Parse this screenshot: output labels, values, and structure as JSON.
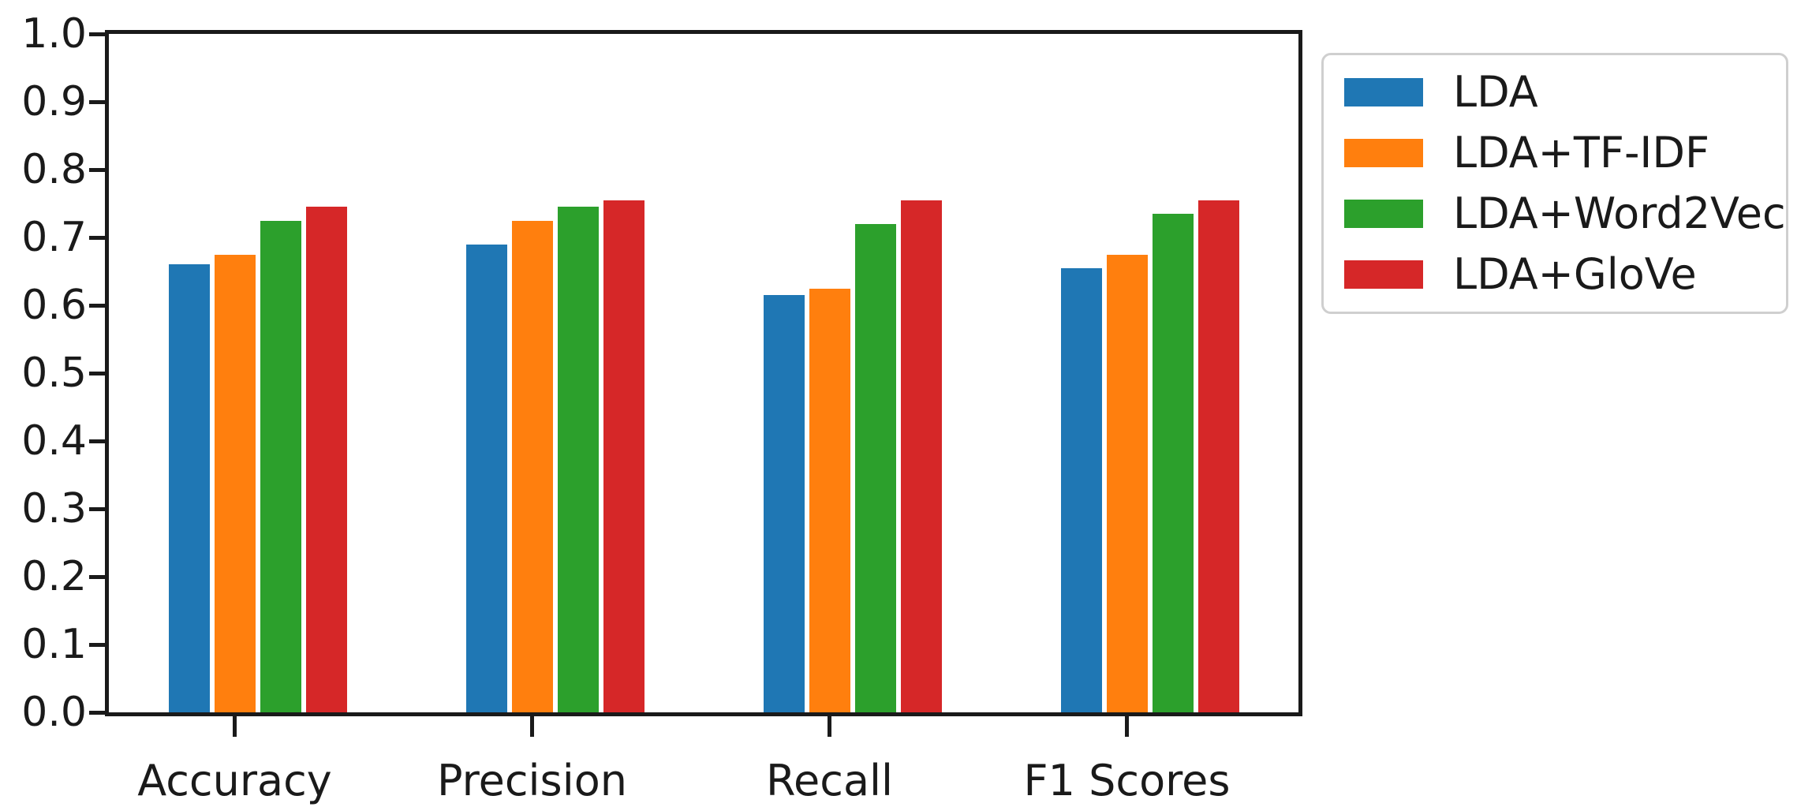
{
  "figure": {
    "background": "#ffffff",
    "axis_color": "#1a1a1a",
    "text_color": "#1a1a1a",
    "legend_border_color": "#cfcfcf"
  },
  "chart_data": {
    "type": "bar",
    "title": "",
    "xlabel": "",
    "ylabel": "",
    "categories": [
      "Accuracy",
      "Precision",
      "Recall",
      "F1 Scores"
    ],
    "series": [
      {
        "name": "LDA",
        "color": "#1f77b4",
        "values": [
          0.66,
          0.69,
          0.615,
          0.655
        ]
      },
      {
        "name": "LDA+TF-IDF",
        "color": "#ff7f0e",
        "values": [
          0.675,
          0.725,
          0.625,
          0.675
        ]
      },
      {
        "name": "LDA+Word2Vec",
        "color": "#2ca02c",
        "values": [
          0.725,
          0.745,
          0.72,
          0.735
        ]
      },
      {
        "name": "LDA+GloVe",
        "color": "#d62728",
        "values": [
          0.745,
          0.755,
          0.755,
          0.755
        ]
      }
    ],
    "ylim": [
      0.0,
      1.0
    ],
    "yticks": [
      "0.0",
      "0.1",
      "0.2",
      "0.3",
      "0.4",
      "0.5",
      "0.6",
      "0.7",
      "0.8",
      "0.9",
      "1.0"
    ],
    "grid": false,
    "legend_position": "outside-upper-right"
  }
}
